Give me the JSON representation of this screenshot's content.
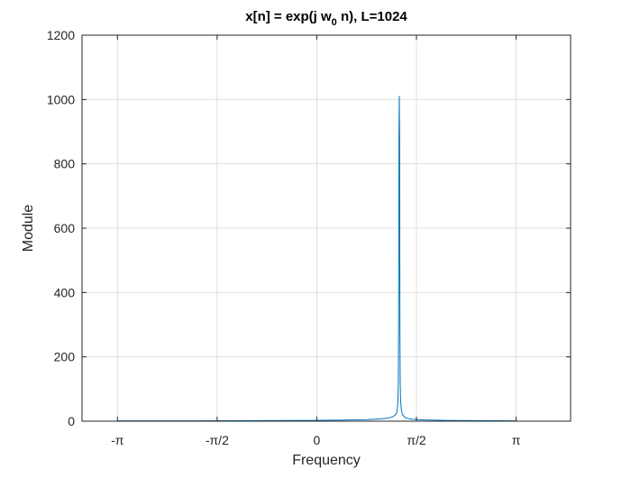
{
  "chart_data": {
    "type": "line",
    "title": {
      "prefix": "x[n] = exp(j w",
      "subscript": "0",
      "suffix": " n), L=1024"
    },
    "xlabel": "Frequency",
    "ylabel": "Module",
    "xlim": [
      -3.7,
      4.0
    ],
    "ylim": [
      0,
      1200
    ],
    "grid": true,
    "xticks": [
      {
        "value": -3.14159,
        "label": "-π"
      },
      {
        "value": -1.5708,
        "label": "-π/2"
      },
      {
        "value": 0,
        "label": "0"
      },
      {
        "value": 1.5708,
        "label": "π/2"
      },
      {
        "value": 3.14159,
        "label": "π"
      }
    ],
    "yticks": [
      {
        "value": 0,
        "label": "0"
      },
      {
        "value": 200,
        "label": "200"
      },
      {
        "value": 400,
        "label": "400"
      },
      {
        "value": 600,
        "label": "600"
      },
      {
        "value": 800,
        "label": "800"
      },
      {
        "value": 1000,
        "label": "1000"
      },
      {
        "value": 1200,
        "label": "1200"
      }
    ],
    "series": [
      {
        "color": "#0072bd",
        "x": [
          -3.14159,
          -2.5,
          -2.0,
          -1.5,
          -1.0,
          -0.5,
          0.0,
          0.5,
          0.8,
          1.0,
          1.1,
          1.15,
          1.2,
          1.24,
          1.26,
          1.27,
          1.28,
          1.285,
          1.29,
          1.295,
          1.3,
          1.305,
          1.31,
          1.315,
          1.32,
          1.33,
          1.35,
          1.4,
          1.5,
          1.7,
          2.0,
          2.5,
          3.14159
        ],
        "y": [
          0.9,
          1.0,
          1.1,
          1.3,
          1.6,
          2.0,
          2.6,
          3.8,
          5.0,
          7.0,
          9.0,
          11.0,
          14.0,
          20.0,
          28.0,
          40.0,
          70.0,
          120.0,
          300.0,
          880.0,
          1010.0,
          880.0,
          300.0,
          120.0,
          70.0,
          40.0,
          20.0,
          10.0,
          6.0,
          4.0,
          2.6,
          1.6,
          1.0
        ]
      }
    ]
  }
}
